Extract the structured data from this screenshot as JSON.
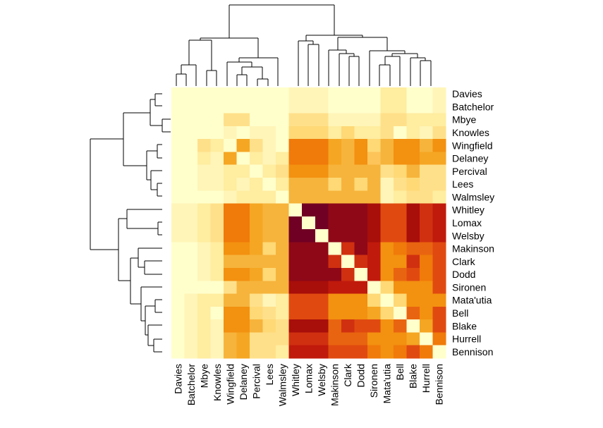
{
  "chart_data": {
    "type": "heatmap",
    "title": "",
    "xlabel": "",
    "ylabel": "",
    "row_labels": [
      "Davies",
      "Batchelor",
      "Mbye",
      "Knowles",
      "Wingfield",
      "Delaney",
      "Percival",
      "Lees",
      "Walmsley",
      "Whitley",
      "Lomax",
      "Welsby",
      "Makinson",
      "Clark",
      "Dodd",
      "Sironen",
      "Mata'utia",
      "Bell",
      "Blake",
      "Hurrell",
      "Bennison"
    ],
    "col_labels": [
      "Davies",
      "Batchelor",
      "Mbye",
      "Knowles",
      "Wingfield",
      "Delaney",
      "Percival",
      "Lees",
      "Walmsley",
      "Whitley",
      "Lomax",
      "Welsby",
      "Makinson",
      "Clark",
      "Dodd",
      "Sironen",
      "Mata'utia",
      "Bell",
      "Blake",
      "Hurrell",
      "Bennison"
    ],
    "color_scale": [
      "#FFFFCC",
      "#FFF5B8",
      "#FFEDA0",
      "#FFE08A",
      "#FED976",
      "#FDC45A",
      "#F6B43C",
      "#F5A623",
      "#F39110",
      "#F07A0A",
      "#E96410",
      "#E04A10",
      "#D03010",
      "#C01A0C",
      "#A80E0A",
      "#8E0818",
      "#700024"
    ],
    "values": [
      [
        0,
        0,
        0,
        0,
        0,
        0,
        0,
        0,
        0,
        1,
        1,
        1,
        0,
        0,
        0,
        0,
        2,
        2,
        0,
        0,
        1
      ],
      [
        0,
        0,
        0,
        0,
        0,
        0,
        0,
        0,
        0,
        1,
        1,
        1,
        0,
        0,
        0,
        0,
        2,
        2,
        0,
        0,
        1
      ],
      [
        0,
        0,
        0,
        0,
        3,
        3,
        0,
        0,
        0,
        3,
        3,
        3,
        1,
        1,
        1,
        1,
        3,
        3,
        2,
        2,
        2
      ],
      [
        0,
        0,
        0,
        0,
        1,
        0,
        1,
        1,
        0,
        4,
        4,
        4,
        2,
        4,
        2,
        2,
        3,
        0,
        2,
        1,
        3
      ],
      [
        0,
        0,
        3,
        2,
        0,
        7,
        3,
        1,
        0,
        9,
        9,
        9,
        7,
        6,
        8,
        4,
        6,
        8,
        8,
        6,
        8
      ],
      [
        0,
        0,
        2,
        1,
        7,
        0,
        2,
        1,
        2,
        9,
        9,
        9,
        7,
        6,
        8,
        5,
        6,
        8,
        8,
        7,
        7
      ],
      [
        0,
        0,
        1,
        1,
        2,
        2,
        0,
        2,
        3,
        8,
        8,
        8,
        6,
        6,
        6,
        6,
        3,
        4,
        6,
        3,
        3
      ],
      [
        0,
        0,
        1,
        1,
        2,
        1,
        2,
        0,
        2,
        6,
        6,
        6,
        4,
        6,
        4,
        6,
        1,
        3,
        4,
        3,
        3
      ],
      [
        0,
        0,
        0,
        0,
        1,
        2,
        2,
        2,
        0,
        6,
        6,
        6,
        6,
        6,
        6,
        6,
        1,
        2,
        3,
        3,
        2
      ],
      [
        1,
        1,
        2,
        3,
        9,
        9,
        7,
        6,
        6,
        0,
        16,
        16,
        15,
        15,
        15,
        14,
        11,
        11,
        14,
        12,
        13
      ],
      [
        1,
        1,
        2,
        3,
        9,
        9,
        7,
        6,
        6,
        16,
        0,
        16,
        15,
        15,
        15,
        14,
        11,
        11,
        14,
        12,
        13
      ],
      [
        1,
        1,
        2,
        3,
        9,
        9,
        7,
        6,
        6,
        16,
        16,
        0,
        15,
        15,
        15,
        14,
        11,
        11,
        14,
        12,
        13
      ],
      [
        0,
        0,
        1,
        2,
        8,
        8,
        7,
        4,
        6,
        15,
        15,
        15,
        0,
        12,
        15,
        13,
        8,
        9,
        10,
        10,
        11
      ],
      [
        0,
        0,
        1,
        2,
        6,
        6,
        6,
        6,
        6,
        15,
        15,
        15,
        12,
        0,
        12,
        13,
        8,
        8,
        12,
        9,
        11
      ],
      [
        0,
        0,
        1,
        2,
        8,
        8,
        7,
        4,
        6,
        15,
        15,
        15,
        15,
        12,
        0,
        13,
        8,
        10,
        11,
        9,
        11
      ],
      [
        0,
        0,
        0,
        0,
        3,
        6,
        6,
        6,
        6,
        14,
        14,
        14,
        13,
        13,
        13,
        0,
        4,
        8,
        8,
        8,
        11
      ],
      [
        0,
        1,
        2,
        2,
        6,
        6,
        3,
        1,
        2,
        11,
        11,
        11,
        8,
        8,
        8,
        4,
        0,
        4,
        8,
        8,
        8
      ],
      [
        0,
        1,
        2,
        0,
        8,
        8,
        4,
        3,
        2,
        11,
        11,
        11,
        8,
        8,
        8,
        7,
        4,
        0,
        10,
        8,
        11
      ],
      [
        0,
        1,
        2,
        1,
        8,
        8,
        6,
        4,
        3,
        14,
        14,
        14,
        10,
        12,
        11,
        11,
        8,
        10,
        0,
        7,
        11
      ],
      [
        0,
        1,
        2,
        1,
        6,
        7,
        3,
        3,
        3,
        12,
        12,
        12,
        10,
        10,
        10,
        8,
        8,
        8,
        7,
        0,
        9
      ],
      [
        0,
        1,
        2,
        1,
        6,
        7,
        3,
        3,
        2,
        13,
        13,
        13,
        11,
        11,
        11,
        9,
        8,
        9,
        11,
        9,
        0
      ]
    ]
  }
}
